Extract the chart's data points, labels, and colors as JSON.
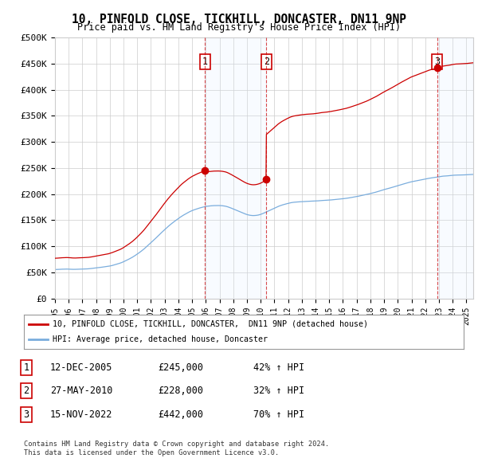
{
  "title": "10, PINFOLD CLOSE, TICKHILL, DONCASTER, DN11 9NP",
  "subtitle": "Price paid vs. HM Land Registry's House Price Index (HPI)",
  "ylabel_ticks": [
    "£0",
    "£50K",
    "£100K",
    "£150K",
    "£200K",
    "£250K",
    "£300K",
    "£350K",
    "£400K",
    "£450K",
    "£500K"
  ],
  "ytick_values": [
    0,
    50000,
    100000,
    150000,
    200000,
    250000,
    300000,
    350000,
    400000,
    450000,
    500000
  ],
  "ylim": [
    0,
    500000
  ],
  "xlim_start": 1995.0,
  "xlim_end": 2025.5,
  "sale_dates": [
    2005.95,
    2010.41,
    2022.88
  ],
  "sale_prices": [
    245000,
    228000,
    442000
  ],
  "sale_labels": [
    "1",
    "2",
    "3"
  ],
  "legend_line1": "10, PINFOLD CLOSE, TICKHILL, DONCASTER,  DN11 9NP (detached house)",
  "legend_line2": "HPI: Average price, detached house, Doncaster",
  "table_data": [
    [
      "1",
      "12-DEC-2005",
      "£245,000",
      "42% ↑ HPI"
    ],
    [
      "2",
      "27-MAY-2010",
      "£228,000",
      "32% ↑ HPI"
    ],
    [
      "3",
      "15-NOV-2022",
      "£442,000",
      "70% ↑ HPI"
    ]
  ],
  "footnote1": "Contains HM Land Registry data © Crown copyright and database right 2024.",
  "footnote2": "This data is licensed under the Open Government Licence v3.0.",
  "red_color": "#cc0000",
  "blue_color": "#7aaddd",
  "shading_color": "#ddeeff",
  "background_color": "#ffffff",
  "grid_color": "#cccccc"
}
